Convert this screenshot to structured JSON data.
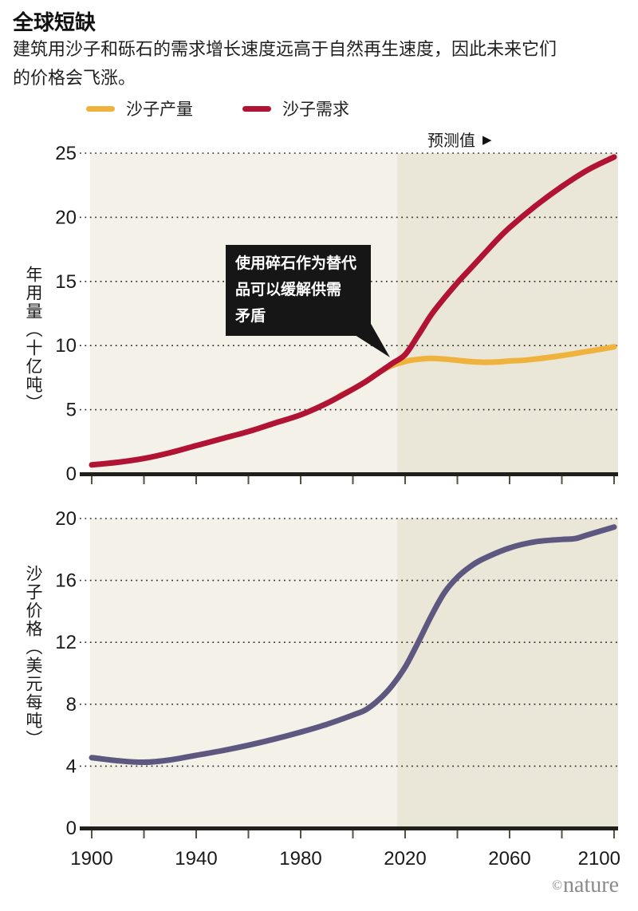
{
  "header": {
    "title": "全球短缺",
    "subtitle": "建筑用沙子和砾石的需求增长速度远高于自然再生速度，因此未来它们的价格会飞涨。"
  },
  "legend": [
    {
      "label": "沙子产量",
      "color": "#efb33d"
    },
    {
      "label": "沙子需求",
      "color": "#b01334"
    }
  ],
  "forecast": {
    "label": "预测值",
    "arrow_glyph": "▶"
  },
  "annotation": {
    "lines": [
      "使用碎石作为替代",
      "品可以缓解供需",
      "矛盾"
    ]
  },
  "footer": {
    "credit_symbol": "©",
    "credit_name": "nature"
  },
  "colors": {
    "plot_bg": "#f3f1e8",
    "forecast_bg": "#eae7d8",
    "axis": "#21201b",
    "tick": "#55524a",
    "grid": "#2f2e2a",
    "text": "#1a1a1a",
    "production": "#efb33d",
    "demand": "#b01334",
    "price": "#5e5880",
    "callout_bg": "#161616"
  },
  "chart_data": [
    {
      "type": "line",
      "ylabel": "年用量（十亿吨）",
      "ylim": [
        0,
        25
      ],
      "xlim": [
        1900,
        2100
      ],
      "yticks": [
        0,
        5,
        10,
        15,
        20,
        25
      ],
      "xticks_minor": [
        1900,
        1920,
        1940,
        1960,
        1980,
        2000,
        2020,
        2040,
        2060,
        2080,
        2100
      ],
      "xticks_labeled": [
        1900,
        1940,
        1980,
        2020,
        2060,
        2100
      ],
      "show_x_labels": false,
      "grid": "dotted",
      "forecast_start": 2017,
      "series": [
        {
          "name": "沙子产量",
          "color": "#efb33d",
          "points": [
            [
              1995,
              6.1
            ],
            [
              2000,
              6.6
            ],
            [
              2005,
              7.2
            ],
            [
              2010,
              7.9
            ],
            [
              2014,
              8.35
            ],
            [
              2018,
              8.65
            ],
            [
              2022,
              8.85
            ],
            [
              2026,
              8.95
            ],
            [
              2030,
              9.0
            ],
            [
              2035,
              8.95
            ],
            [
              2040,
              8.85
            ],
            [
              2045,
              8.75
            ],
            [
              2050,
              8.7
            ],
            [
              2055,
              8.72
            ],
            [
              2060,
              8.8
            ],
            [
              2065,
              8.85
            ],
            [
              2070,
              8.95
            ],
            [
              2075,
              9.08
            ],
            [
              2080,
              9.22
            ],
            [
              2085,
              9.38
            ],
            [
              2090,
              9.55
            ],
            [
              2095,
              9.72
            ],
            [
              2100,
              9.9
            ]
          ]
        },
        {
          "name": "沙子需求",
          "color": "#b01334",
          "points": [
            [
              1900,
              0.7
            ],
            [
              1910,
              0.9
            ],
            [
              1920,
              1.2
            ],
            [
              1930,
              1.65
            ],
            [
              1940,
              2.2
            ],
            [
              1950,
              2.75
            ],
            [
              1960,
              3.3
            ],
            [
              1970,
              3.95
            ],
            [
              1980,
              4.6
            ],
            [
              1990,
              5.5
            ],
            [
              2000,
              6.6
            ],
            [
              2005,
              7.2
            ],
            [
              2010,
              7.9
            ],
            [
              2015,
              8.6
            ],
            [
              2020,
              9.3
            ],
            [
              2025,
              10.8
            ],
            [
              2030,
              12.4
            ],
            [
              2035,
              13.7
            ],
            [
              2040,
              14.9
            ],
            [
              2045,
              16.0
            ],
            [
              2050,
              17.1
            ],
            [
              2055,
              18.2
            ],
            [
              2060,
              19.2
            ],
            [
              2070,
              20.9
            ],
            [
              2080,
              22.4
            ],
            [
              2090,
              23.7
            ],
            [
              2100,
              24.7
            ]
          ]
        }
      ]
    },
    {
      "type": "line",
      "ylabel": "沙子价格（美元每吨）",
      "ylim": [
        0,
        20
      ],
      "xlim": [
        1900,
        2100
      ],
      "yticks": [
        0,
        4,
        8,
        12,
        16,
        20
      ],
      "xticks_minor": [
        1900,
        1920,
        1940,
        1960,
        1980,
        2000,
        2020,
        2040,
        2060,
        2080,
        2100
      ],
      "xticks_labeled": [
        1900,
        1940,
        1980,
        2020,
        2060,
        2100
      ],
      "show_x_labels": true,
      "grid": "dotted",
      "forecast_start": 2017,
      "series": [
        {
          "name": "沙子价格",
          "color": "#5e5880",
          "points": [
            [
              1900,
              4.55
            ],
            [
              1910,
              4.35
            ],
            [
              1920,
              4.25
            ],
            [
              1930,
              4.4
            ],
            [
              1940,
              4.7
            ],
            [
              1950,
              5.0
            ],
            [
              1960,
              5.35
            ],
            [
              1970,
              5.75
            ],
            [
              1980,
              6.2
            ],
            [
              1990,
              6.7
            ],
            [
              2000,
              7.3
            ],
            [
              2005,
              7.65
            ],
            [
              2010,
              8.3
            ],
            [
              2015,
              9.2
            ],
            [
              2020,
              10.4
            ],
            [
              2025,
              12.0
            ],
            [
              2030,
              13.7
            ],
            [
              2035,
              15.2
            ],
            [
              2040,
              16.2
            ],
            [
              2045,
              16.9
            ],
            [
              2050,
              17.4
            ],
            [
              2060,
              18.1
            ],
            [
              2070,
              18.5
            ],
            [
              2080,
              18.65
            ],
            [
              2085,
              18.7
            ],
            [
              2090,
              18.95
            ],
            [
              2100,
              19.45
            ]
          ]
        }
      ]
    }
  ]
}
